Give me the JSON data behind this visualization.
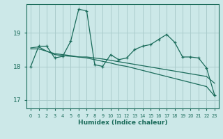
{
  "xlabel": "Humidex (Indice chaleur)",
  "bg_color": "#cce8e8",
  "grid_color": "#aacccc",
  "line_color": "#1a6b5a",
  "xlim": [
    -0.5,
    23.5
  ],
  "ylim": [
    16.75,
    19.85
  ],
  "yticks": [
    17,
    18,
    19
  ],
  "xticks": [
    0,
    1,
    2,
    3,
    4,
    5,
    6,
    7,
    8,
    9,
    10,
    11,
    12,
    13,
    14,
    15,
    16,
    17,
    18,
    19,
    20,
    21,
    22,
    23
  ],
  "line1_x": [
    0,
    1,
    2,
    3,
    4,
    5,
    6,
    7,
    8,
    9,
    10,
    11,
    12,
    13,
    14,
    15,
    16,
    17,
    18,
    19,
    20,
    21,
    22,
    23
  ],
  "line1_y": [
    18.0,
    18.6,
    18.6,
    18.25,
    18.3,
    18.75,
    19.7,
    19.65,
    18.05,
    18.0,
    18.35,
    18.2,
    18.25,
    18.5,
    18.6,
    18.65,
    18.8,
    18.95,
    18.72,
    18.28,
    18.28,
    18.25,
    17.95,
    17.15
  ],
  "line2_x": [
    0,
    1,
    2,
    3,
    4,
    5,
    6,
    7,
    8,
    9,
    10,
    11,
    12,
    13,
    14,
    15,
    16,
    17,
    18,
    19,
    20,
    21,
    22,
    23
  ],
  "line2_y": [
    18.55,
    18.58,
    18.45,
    18.35,
    18.32,
    18.3,
    18.28,
    18.28,
    18.25,
    18.22,
    18.18,
    18.14,
    18.1,
    18.06,
    18.02,
    17.98,
    17.94,
    17.9,
    17.86,
    17.82,
    17.78,
    17.74,
    17.7,
    17.5
  ],
  "line3_x": [
    0,
    1,
    2,
    3,
    4,
    5,
    6,
    7,
    8,
    9,
    10,
    11,
    12,
    13,
    14,
    15,
    16,
    17,
    18,
    19,
    20,
    21,
    22,
    23
  ],
  "line3_y": [
    18.52,
    18.52,
    18.45,
    18.38,
    18.35,
    18.32,
    18.28,
    18.25,
    18.2,
    18.15,
    18.1,
    18.04,
    18.0,
    17.94,
    17.88,
    17.82,
    17.76,
    17.7,
    17.64,
    17.58,
    17.52,
    17.46,
    17.4,
    17.12
  ]
}
